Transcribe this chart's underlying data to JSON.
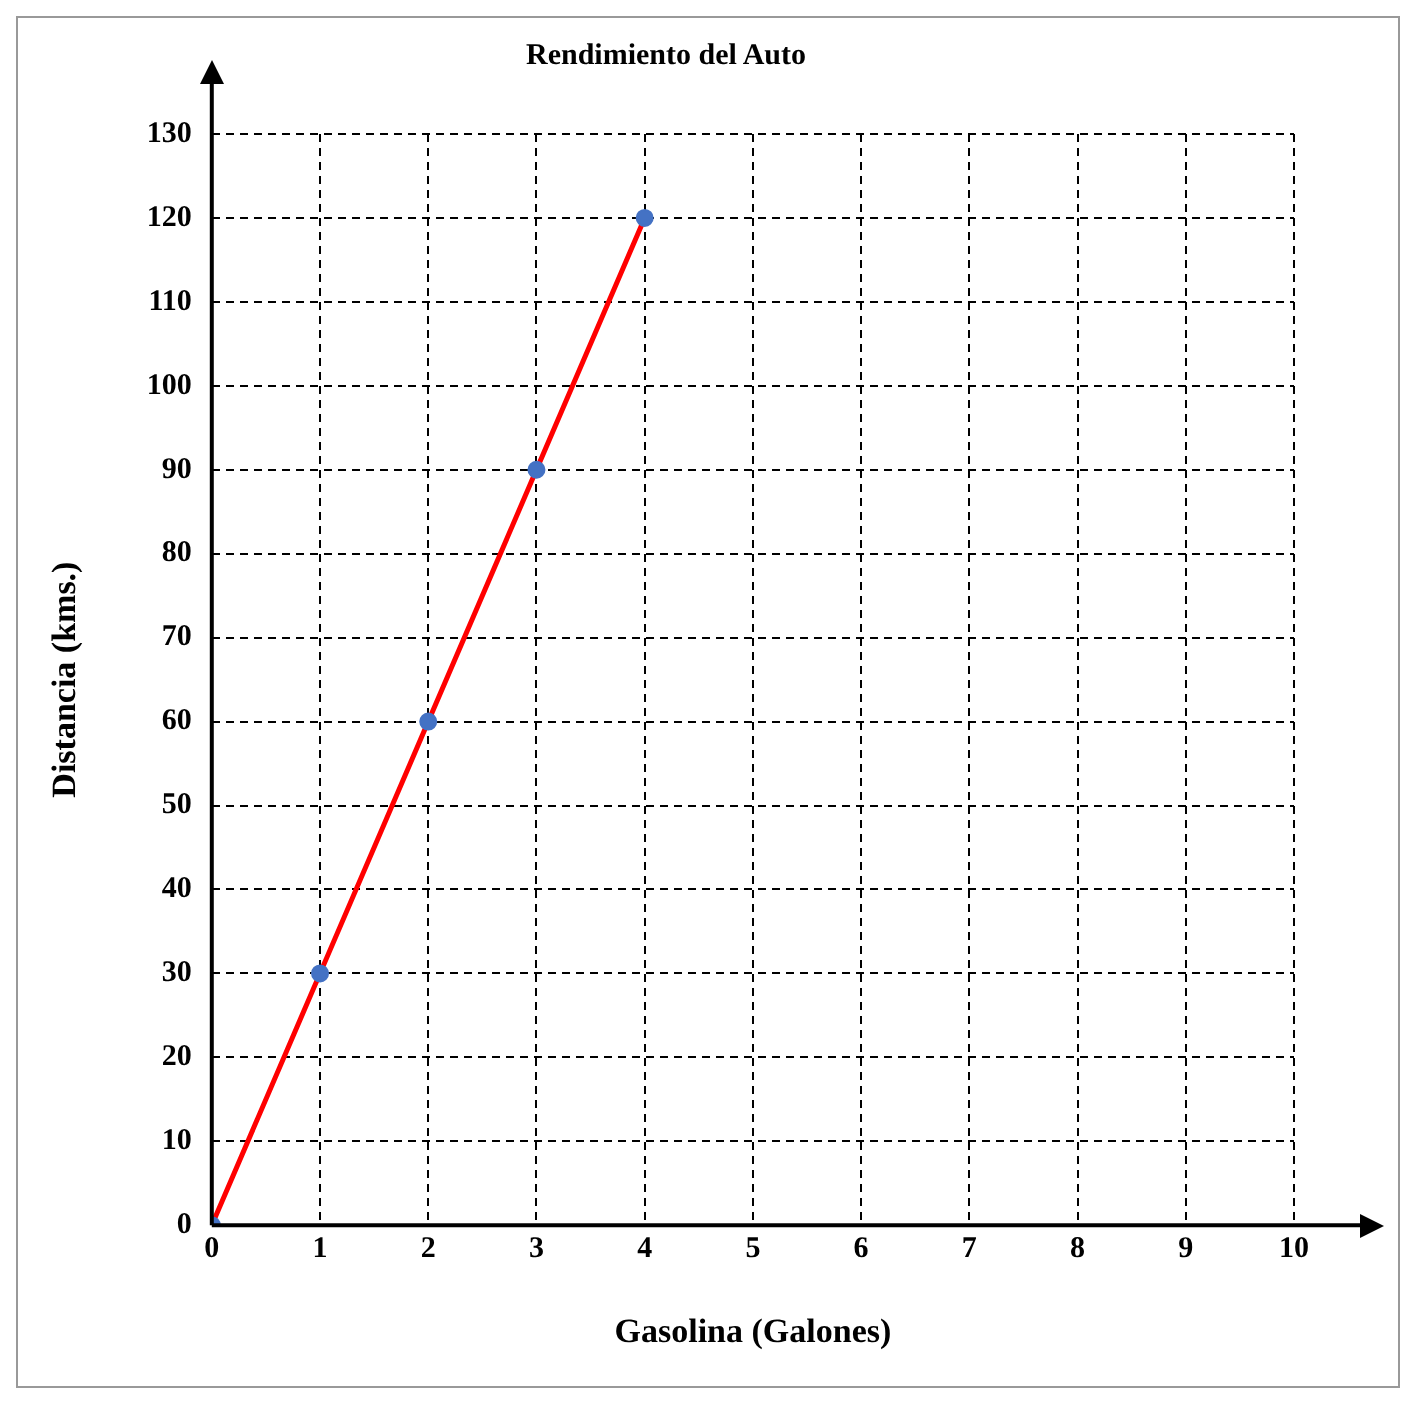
{
  "chart_data": {
    "type": "line",
    "title": "Rendimiento del Auto",
    "xlabel": "Gasolina (Galones)",
    "ylabel": "Distancia (kms.)",
    "x": [
      0,
      1,
      2,
      3,
      4
    ],
    "series": [
      {
        "color": "#ff0000",
        "values": [
          0,
          30,
          60,
          90,
          120
        ],
        "marker": "none"
      },
      {
        "type": "scatter",
        "color": "#4472c4",
        "values": [
          0,
          30,
          60,
          90,
          120
        ],
        "marker": "circle"
      }
    ],
    "xlim": [
      0,
      10
    ],
    "xticks": [
      0,
      1,
      2,
      3,
      4,
      5,
      6,
      7,
      8,
      9,
      10
    ],
    "ylim": [
      0,
      130
    ],
    "yticks": [
      0,
      10,
      20,
      30,
      40,
      50,
      60,
      70,
      80,
      90,
      100,
      110,
      120,
      130
    ],
    "grid": true,
    "legend": false
  }
}
